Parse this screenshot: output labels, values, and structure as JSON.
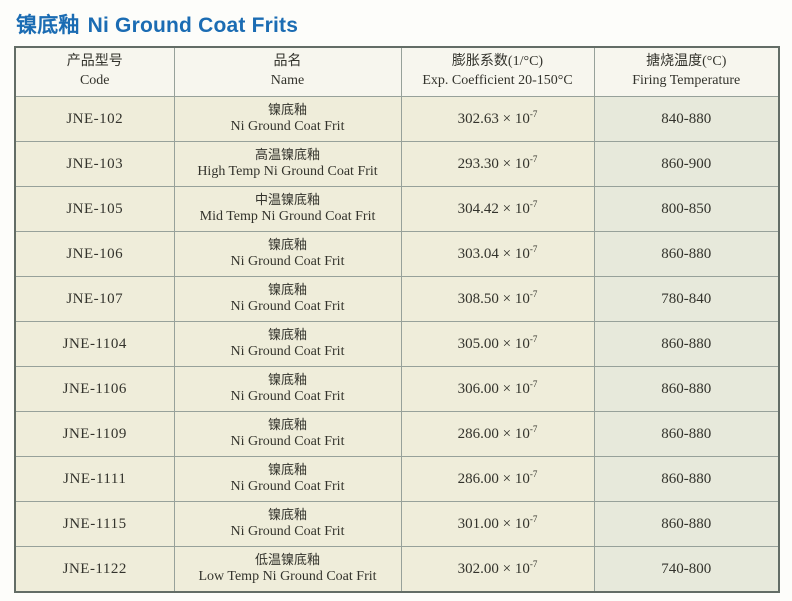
{
  "page": {
    "title_zh": "镍底釉",
    "title_en": "Ni Ground Coat Frits",
    "title_color": "#1b6cb3"
  },
  "colors": {
    "cell_background": "#efedda",
    "firing_column_background": "#e7e9db",
    "header_background": "#f7f6ee",
    "grid_line": "#97a19a",
    "outer_border": "#636d66"
  },
  "table": {
    "headers": [
      {
        "zh": "产品型号",
        "en": "Code"
      },
      {
        "zh": "品名",
        "en": "Name"
      },
      {
        "zh": "膨胀系数(1/°C)",
        "en": "Exp. Coefficient 20-150°C"
      },
      {
        "zh": "搪烧温度(°C)",
        "en": "Firing Temperature"
      }
    ],
    "rows": [
      {
        "code": "JNE-102",
        "name_zh": "镍底釉",
        "name_en": "Ni Ground Coat Frit",
        "coeff_base": "302.63 × 10",
        "coeff_exp": "-7",
        "firing": "840-880"
      },
      {
        "code": "JNE-103",
        "name_zh": "高温镍底釉",
        "name_en": "High Temp Ni Ground Coat Frit",
        "coeff_base": "293.30 × 10",
        "coeff_exp": "-7",
        "firing": "860-900"
      },
      {
        "code": "JNE-105",
        "name_zh": "中温镍底釉",
        "name_en": "Mid Temp Ni Ground Coat Frit",
        "coeff_base": "304.42 × 10",
        "coeff_exp": "-7",
        "firing": "800-850"
      },
      {
        "code": "JNE-106",
        "name_zh": "镍底釉",
        "name_en": "Ni Ground Coat Frit",
        "coeff_base": "303.04 × 10",
        "coeff_exp": "-7",
        "firing": "860-880"
      },
      {
        "code": "JNE-107",
        "name_zh": "镍底釉",
        "name_en": "Ni Ground Coat Frit",
        "coeff_base": "308.50 × 10",
        "coeff_exp": "-7",
        "firing": "780-840"
      },
      {
        "code": "JNE-1104",
        "name_zh": "镍底釉",
        "name_en": "Ni Ground Coat Frit",
        "coeff_base": "305.00 × 10",
        "coeff_exp": "-7",
        "firing": "860-880"
      },
      {
        "code": "JNE-1106",
        "name_zh": "镍底釉",
        "name_en": "Ni Ground Coat Frit",
        "coeff_base": "306.00 × 10",
        "coeff_exp": "-7",
        "firing": "860-880"
      },
      {
        "code": "JNE-1109",
        "name_zh": "镍底釉",
        "name_en": "Ni Ground Coat Frit",
        "coeff_base": "286.00 × 10",
        "coeff_exp": "-7",
        "firing": "860-880"
      },
      {
        "code": "JNE-1111",
        "name_zh": "镍底釉",
        "name_en": "Ni Ground Coat Frit",
        "coeff_base": "286.00 × 10",
        "coeff_exp": "-7",
        "firing": "860-880"
      },
      {
        "code": "JNE-1115",
        "name_zh": "镍底釉",
        "name_en": "Ni Ground Coat Frit",
        "coeff_base": "301.00 × 10",
        "coeff_exp": "-7",
        "firing": "860-880"
      },
      {
        "code": "JNE-1122",
        "name_zh": "低温镍底釉",
        "name_en": "Low Temp Ni Ground Coat Frit",
        "coeff_base": "302.00 × 10",
        "coeff_exp": "-7",
        "firing": "740-800"
      }
    ]
  }
}
